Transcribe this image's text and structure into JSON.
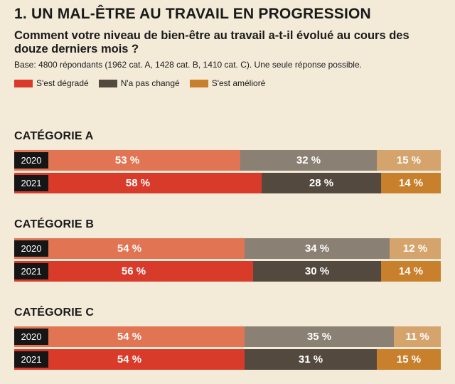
{
  "title": "1. UN MAL-ÊTRE AU TRAVAIL EN PROGRESSION",
  "subtitle": "Comment votre niveau de bien-être au travail a-t-il évolué au cours des douze derniers mois ?",
  "base": "Base: 4800 répondants (1962 cat. A, 1428 cat. B, 1410 cat. C). Une seule réponse possible.",
  "legend": [
    {
      "label": "S'est dégradé",
      "color": "#d93b2b"
    },
    {
      "label": "N'a pas changé",
      "color": "#54493e"
    },
    {
      "label": "S'est amélioré",
      "color": "#c8802c"
    }
  ],
  "chart_data": {
    "type": "bar",
    "stacked": "horizontal-100%",
    "series_names": [
      "S'est dégradé",
      "N'a pas changé",
      "S'est amélioré"
    ],
    "colors": {
      "2020": [
        "#e07453",
        "#8a8073",
        "#d5a46c"
      ],
      "2021": [
        "#d93b2b",
        "#54493e",
        "#c8802c"
      ]
    },
    "groups": [
      {
        "name": "CATÉGORIE A",
        "rows": [
          {
            "year": "2020",
            "values": [
              53,
              32,
              15
            ],
            "labels": [
              "53 %",
              "32 %",
              "15 %"
            ]
          },
          {
            "year": "2021",
            "values": [
              58,
              28,
              14
            ],
            "labels": [
              "58 %",
              "28 %",
              "14 %"
            ]
          }
        ]
      },
      {
        "name": "CATÉGORIE B",
        "rows": [
          {
            "year": "2020",
            "values": [
              54,
              34,
              12
            ],
            "labels": [
              "54 %",
              "34 %",
              "12 %"
            ]
          },
          {
            "year": "2021",
            "values": [
              56,
              30,
              14
            ],
            "labels": [
              "56 %",
              "30 %",
              "14 %"
            ]
          }
        ]
      },
      {
        "name": "CATÉGORIE C",
        "rows": [
          {
            "year": "2020",
            "values": [
              54,
              35,
              11
            ],
            "labels": [
              "54 %",
              "35 %",
              "11 %"
            ]
          },
          {
            "year": "2021",
            "values": [
              54,
              31,
              15
            ],
            "labels": [
              "54 %",
              "31 %",
              "15 %"
            ]
          }
        ]
      }
    ]
  }
}
